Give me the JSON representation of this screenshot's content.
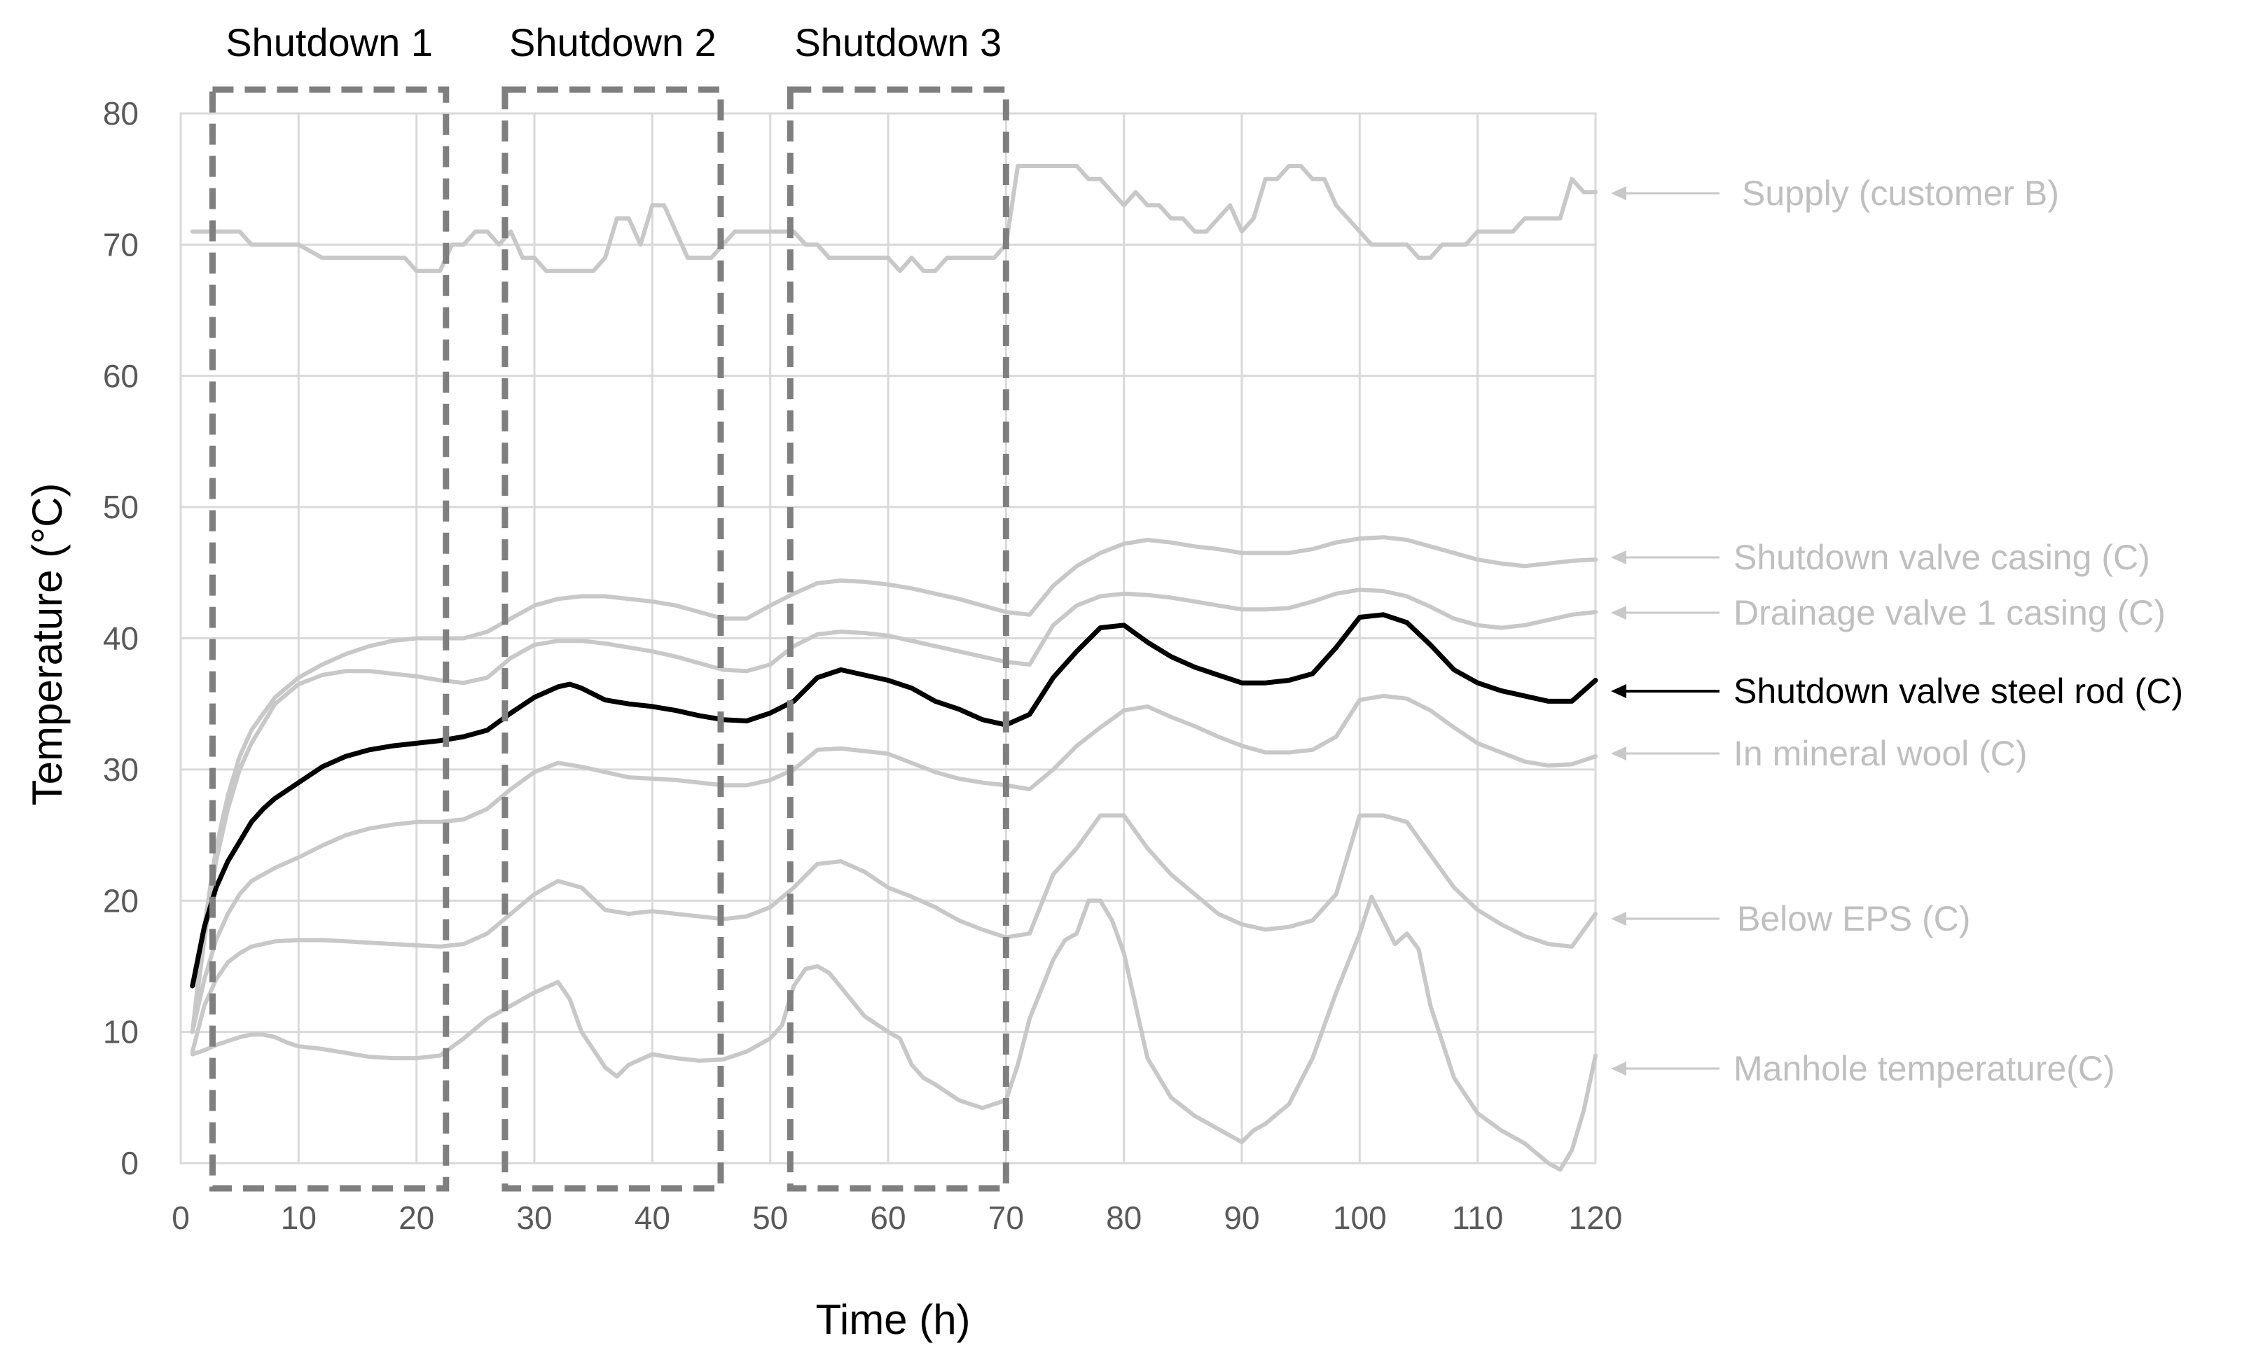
{
  "chart_data": {
    "type": "line",
    "title": "",
    "xlabel": "Time (h)",
    "ylabel": "Temperature (°C)",
    "xlim": [
      0,
      120
    ],
    "ylim": [
      0,
      80
    ],
    "xticks": [
      0,
      10,
      20,
      30,
      40,
      50,
      60,
      70,
      80,
      90,
      100,
      110,
      120
    ],
    "yticks": [
      0,
      10,
      20,
      30,
      40,
      50,
      60,
      70,
      80
    ],
    "grid": true,
    "legend": "annotated right of plot with arrows",
    "shutdowns": [
      {
        "label": "Shutdown 1",
        "start": 2.7,
        "end": 22.5
      },
      {
        "label": "Shutdown 2",
        "start": 27.5,
        "end": 45.8
      },
      {
        "label": "Shutdown 3",
        "start": 51.7,
        "end": 70.0
      }
    ],
    "series": [
      {
        "name": "Supply (customer B)",
        "color": "#c8c8c8",
        "highlight": false,
        "x": [
          1,
          4,
          5,
          6,
          8,
          10,
          12,
          14,
          16,
          18,
          19,
          20,
          21,
          22,
          23,
          24,
          25,
          26,
          27,
          28,
          29,
          30,
          31,
          32,
          33,
          34,
          35,
          36,
          37,
          38,
          39,
          40,
          41,
          42,
          43,
          44,
          45,
          46,
          47,
          48,
          49,
          50,
          51,
          52,
          53,
          54,
          55,
          56,
          58,
          60,
          61,
          62,
          63,
          64,
          65,
          66,
          67,
          68,
          69,
          70,
          71,
          72,
          74,
          76,
          77,
          78,
          79,
          80,
          81,
          82,
          83,
          84,
          85,
          86,
          87,
          88,
          89,
          90,
          91,
          92,
          93,
          94,
          95,
          96,
          97,
          98,
          99,
          100,
          101,
          102,
          103,
          104,
          105,
          106,
          107,
          108,
          109,
          110,
          111,
          112,
          113,
          114,
          115,
          116,
          117,
          118,
          119,
          120
        ],
        "values": [
          71,
          71,
          71,
          70,
          70,
          70,
          69,
          69,
          69,
          69,
          69,
          68,
          68,
          68,
          70,
          70,
          71,
          71,
          70,
          71,
          69,
          69,
          68,
          68,
          68,
          68,
          68,
          69,
          72,
          72,
          70,
          73,
          73,
          71,
          69,
          69,
          69,
          70,
          71,
          71,
          71,
          71,
          71,
          71,
          70,
          70,
          69,
          69,
          69,
          69,
          68,
          69,
          68,
          68,
          69,
          69,
          69,
          69,
          69,
          70,
          76,
          76,
          76,
          76,
          75,
          75,
          74,
          73,
          74,
          73,
          73,
          72,
          72,
          71,
          71,
          72,
          73,
          71,
          72,
          75,
          75,
          76,
          76,
          75,
          75,
          73,
          72,
          71,
          70,
          70,
          70,
          70,
          69,
          69,
          70,
          70,
          70,
          71,
          71,
          71,
          71,
          72,
          72,
          72,
          72,
          75,
          74,
          74
        ]
      },
      {
        "name": "Shutdown valve casing (C)",
        "color": "#c8c8c8",
        "highlight": false,
        "x": [
          1,
          2,
          3,
          4,
          5,
          6,
          8,
          10,
          12,
          14,
          16,
          18,
          20,
          22,
          24,
          26,
          28,
          30,
          32,
          34,
          36,
          38,
          40,
          42,
          44,
          46,
          48,
          50,
          52,
          54,
          56,
          58,
          60,
          62,
          64,
          66,
          68,
          70,
          72,
          74,
          76,
          78,
          80,
          82,
          84,
          86,
          88,
          90,
          92,
          94,
          96,
          98,
          100,
          102,
          104,
          106,
          108,
          110,
          112,
          114,
          116,
          118,
          120
        ],
        "values": [
          10,
          18,
          24,
          28,
          31,
          33,
          35.5,
          37,
          38,
          38.8,
          39.4,
          39.8,
          40,
          40,
          40,
          40.5,
          41.5,
          42.5,
          43,
          43.2,
          43.2,
          43,
          42.8,
          42.5,
          42,
          41.5,
          41.5,
          42.5,
          43.4,
          44.2,
          44.4,
          44.3,
          44.1,
          43.8,
          43.4,
          43,
          42.5,
          42,
          41.8,
          44,
          45.5,
          46.5,
          47.2,
          47.5,
          47.3,
          47,
          46.8,
          46.5,
          46.5,
          46.5,
          46.8,
          47.3,
          47.6,
          47.7,
          47.5,
          47,
          46.5,
          46,
          45.7,
          45.5,
          45.7,
          45.9,
          46
        ]
      },
      {
        "name": "Drainage valve 1 casing (C)",
        "color": "#c8c8c8",
        "highlight": false,
        "x": [
          1,
          2,
          3,
          4,
          5,
          6,
          8,
          10,
          12,
          14,
          16,
          18,
          20,
          22,
          24,
          26,
          28,
          30,
          32,
          34,
          36,
          38,
          40,
          42,
          44,
          46,
          48,
          50,
          52,
          54,
          56,
          58,
          60,
          62,
          64,
          66,
          68,
          70,
          72,
          74,
          76,
          78,
          80,
          82,
          84,
          86,
          88,
          90,
          92,
          94,
          96,
          98,
          100,
          102,
          104,
          106,
          108,
          110,
          112,
          114,
          116,
          118,
          120
        ],
        "values": [
          10,
          17,
          23,
          27,
          30,
          32,
          35,
          36.5,
          37.2,
          37.5,
          37.5,
          37.3,
          37.1,
          36.8,
          36.6,
          37,
          38.5,
          39.5,
          39.8,
          39.8,
          39.6,
          39.3,
          39,
          38.6,
          38.1,
          37.6,
          37.5,
          38,
          39.4,
          40.3,
          40.5,
          40.4,
          40.2,
          39.8,
          39.4,
          39,
          38.6,
          38.2,
          38,
          41,
          42.5,
          43.2,
          43.4,
          43.3,
          43.1,
          42.8,
          42.5,
          42.2,
          42.2,
          42.3,
          42.8,
          43.4,
          43.7,
          43.6,
          43.2,
          42.4,
          41.5,
          41,
          40.8,
          41,
          41.4,
          41.8,
          42
        ]
      },
      {
        "name": "Shutdown valve steel rod (C)",
        "color": "#000000",
        "highlight": true,
        "x": [
          1,
          2,
          3,
          4,
          5,
          6,
          7,
          8,
          10,
          12,
          14,
          16,
          18,
          20,
          22,
          24,
          26,
          28,
          30,
          32,
          33,
          34,
          36,
          38,
          40,
          42,
          44,
          46,
          48,
          50,
          52,
          54,
          56,
          58,
          60,
          62,
          64,
          66,
          68,
          70,
          72,
          74,
          76,
          78,
          80,
          82,
          84,
          86,
          88,
          90,
          92,
          94,
          96,
          98,
          100,
          102,
          104,
          106,
          108,
          110,
          112,
          114,
          116,
          118,
          120
        ],
        "values": [
          13.5,
          18,
          21,
          23,
          24.5,
          26,
          27,
          27.8,
          29,
          30.2,
          31,
          31.5,
          31.8,
          32,
          32.2,
          32.5,
          33,
          34.3,
          35.5,
          36.3,
          36.5,
          36.2,
          35.3,
          35,
          34.8,
          34.5,
          34.1,
          33.8,
          33.7,
          34.3,
          35.2,
          37,
          37.6,
          37.2,
          36.8,
          36.2,
          35.2,
          34.6,
          33.8,
          33.4,
          34.2,
          37,
          39,
          40.8,
          41,
          39.7,
          38.6,
          37.8,
          37.2,
          36.6,
          36.6,
          36.8,
          37.3,
          39.3,
          41.6,
          41.8,
          41.2,
          39.5,
          37.6,
          36.6,
          36,
          35.6,
          35.2,
          35.2,
          36.8
        ]
      },
      {
        "name": "In mineral wool (C)",
        "color": "#c8c8c8",
        "highlight": false,
        "x": [
          1,
          2,
          3,
          4,
          5,
          6,
          8,
          10,
          12,
          14,
          16,
          18,
          20,
          22,
          24,
          26,
          28,
          30,
          32,
          34,
          36,
          38,
          40,
          42,
          44,
          46,
          48,
          50,
          52,
          54,
          56,
          58,
          60,
          62,
          64,
          66,
          68,
          70,
          72,
          74,
          76,
          78,
          80,
          82,
          84,
          86,
          88,
          90,
          92,
          94,
          96,
          98,
          100,
          102,
          104,
          106,
          108,
          110,
          112,
          114,
          116,
          118,
          120
        ],
        "values": [
          10,
          14,
          17,
          19,
          20.5,
          21.5,
          22.5,
          23.3,
          24.2,
          25,
          25.5,
          25.8,
          26,
          26,
          26.2,
          27,
          28.5,
          29.8,
          30.5,
          30.2,
          29.8,
          29.4,
          29.3,
          29.2,
          29,
          28.8,
          28.8,
          29.2,
          30,
          31.5,
          31.6,
          31.4,
          31.2,
          30.5,
          29.8,
          29.3,
          29,
          28.8,
          28.5,
          30,
          31.8,
          33.2,
          34.5,
          34.8,
          34,
          33.3,
          32.5,
          31.8,
          31.3,
          31.3,
          31.5,
          32.5,
          35.3,
          35.6,
          35.4,
          34.5,
          33.2,
          32,
          31.3,
          30.6,
          30.3,
          30.4,
          31
        ]
      },
      {
        "name": "Below EPS (C)",
        "color": "#c8c8c8",
        "highlight": false,
        "x": [
          1,
          2,
          3,
          4,
          5,
          6,
          8,
          10,
          12,
          14,
          16,
          18,
          20,
          22,
          24,
          26,
          28,
          30,
          32,
          34,
          36,
          38,
          40,
          42,
          44,
          46,
          48,
          50,
          52,
          54,
          56,
          58,
          60,
          62,
          64,
          66,
          68,
          70,
          72,
          74,
          76,
          78,
          80,
          82,
          84,
          86,
          88,
          90,
          92,
          94,
          96,
          98,
          100,
          102,
          104,
          106,
          108,
          110,
          112,
          114,
          116,
          118,
          120
        ],
        "values": [
          8.5,
          12,
          14,
          15.3,
          16,
          16.5,
          16.9,
          17,
          17,
          16.9,
          16.8,
          16.7,
          16.6,
          16.5,
          16.7,
          17.5,
          19,
          20.5,
          21.5,
          21,
          19.3,
          19,
          19.2,
          19,
          18.8,
          18.6,
          18.8,
          19.5,
          21,
          22.8,
          23,
          22.2,
          21,
          20.3,
          19.5,
          18.5,
          17.8,
          17.2,
          17.5,
          22,
          24,
          26.5,
          26.5,
          24,
          22,
          20.5,
          19,
          18.2,
          17.8,
          18,
          18.5,
          20.5,
          26.5,
          26.5,
          26,
          23.5,
          21,
          19.3,
          18.2,
          17.3,
          16.7,
          16.5,
          19
        ]
      },
      {
        "name": "Manhole temperature(C)",
        "color": "#c8c8c8",
        "highlight": false,
        "x": [
          1,
          2,
          3,
          4,
          5,
          6,
          7,
          8,
          9,
          10,
          12,
          14,
          16,
          18,
          20,
          22,
          24,
          26,
          28,
          30,
          32,
          33,
          34,
          36,
          37,
          38,
          40,
          42,
          44,
          46,
          48,
          50,
          51,
          52,
          53,
          54,
          55,
          56,
          58,
          60,
          61,
          62,
          63,
          64,
          66,
          68,
          70,
          71,
          72,
          74,
          75,
          76,
          77,
          78,
          79,
          80,
          82,
          84,
          86,
          88,
          90,
          91,
          92,
          94,
          96,
          98,
          100,
          101,
          102,
          103,
          104,
          105,
          106,
          108,
          110,
          112,
          114,
          116,
          117,
          118,
          119,
          120
        ],
        "values": [
          8.3,
          8.6,
          9,
          9.3,
          9.6,
          9.8,
          9.8,
          9.6,
          9.2,
          8.9,
          8.7,
          8.4,
          8.1,
          8,
          8,
          8.2,
          9.5,
          11,
          12,
          13,
          13.8,
          12.5,
          10,
          7.3,
          6.6,
          7.5,
          8.3,
          8,
          7.8,
          7.9,
          8.5,
          9.5,
          10.5,
          13.5,
          14.8,
          15,
          14.5,
          13.4,
          11.2,
          10,
          9.5,
          7.5,
          6.5,
          6,
          4.8,
          4.2,
          4.8,
          7.5,
          11,
          15.5,
          17,
          17.5,
          20,
          20,
          18.5,
          16,
          8,
          5,
          3.6,
          2.6,
          1.6,
          2.5,
          3,
          4.5,
          8,
          13,
          17.5,
          20.3,
          18.5,
          16.7,
          17.5,
          16.3,
          12,
          6.5,
          3.8,
          2.5,
          1.5,
          0,
          -0.5,
          1,
          4,
          8.2
        ]
      }
    ]
  }
}
